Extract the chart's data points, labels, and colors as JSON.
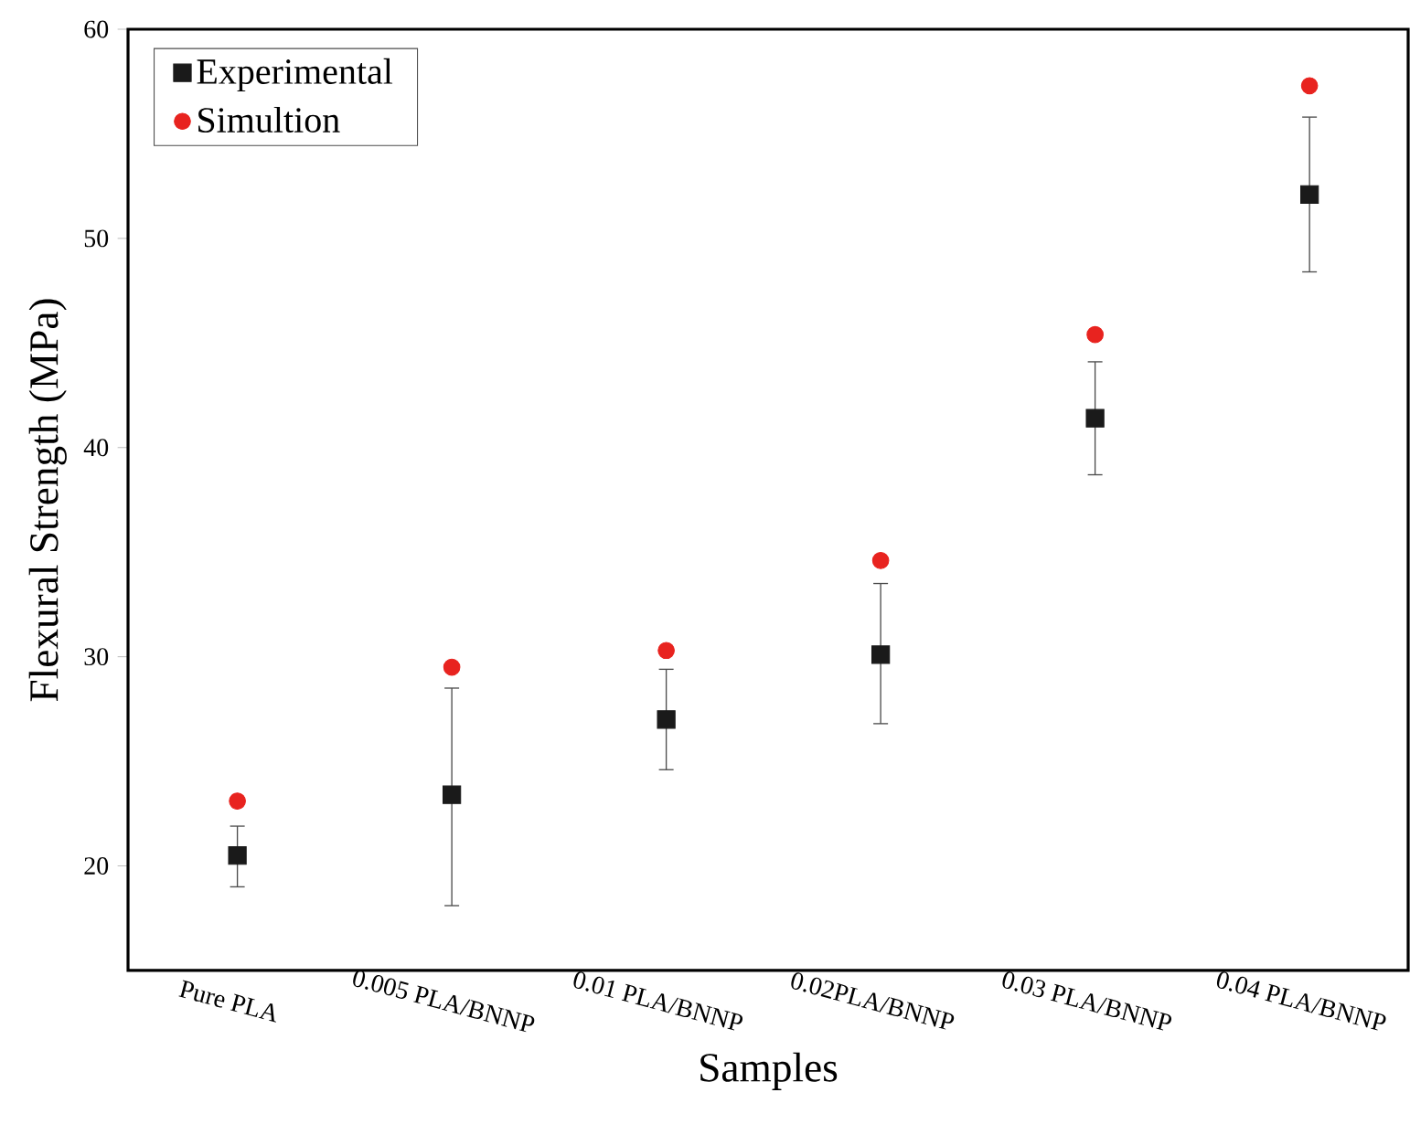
{
  "chart_data": {
    "type": "scatter",
    "xlabel": "Samples",
    "ylabel": "Flexural Strength (MPa)",
    "categories": [
      "Pure PLA",
      "0.005 PLA/BNNP",
      "0.01 PLA/BNNP",
      "0.02PLA/BNNP",
      "0.03 PLA/BNNP",
      "0.04 PLA/BNNP"
    ],
    "series": [
      {
        "name": "Experimental",
        "color": "#1a1a1a",
        "marker": "square",
        "values": [
          20.5,
          23.4,
          27.0,
          30.1,
          41.4,
          52.1
        ],
        "errors": [
          [
            19.0,
            21.9
          ],
          [
            18.1,
            28.5
          ],
          [
            24.6,
            29.4
          ],
          [
            26.8,
            33.5
          ],
          [
            38.7,
            44.1
          ],
          [
            48.4,
            55.8
          ]
        ]
      },
      {
        "name": "Simultion",
        "color": "#e8231f",
        "marker": "circle",
        "values": [
          23.1,
          29.5,
          30.3,
          34.6,
          45.4,
          57.3
        ]
      }
    ],
    "ylim": [
      15,
      60
    ],
    "yticks": [
      20,
      30,
      40,
      50,
      60
    ],
    "legend": "top left"
  }
}
